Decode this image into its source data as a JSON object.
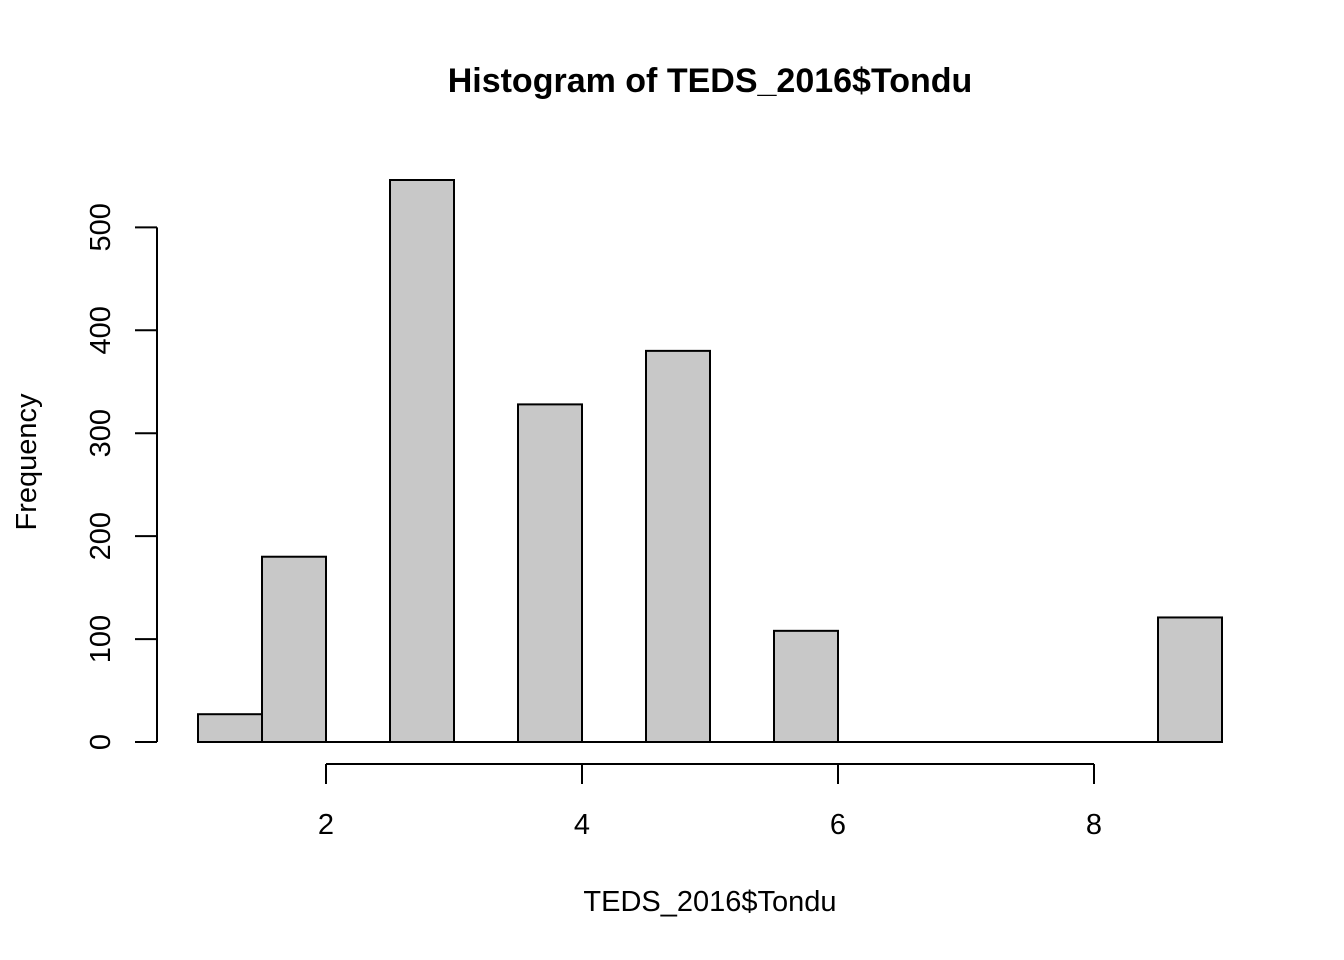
{
  "chart_data": {
    "type": "bar",
    "title": "Histogram of TEDS_2016$Tondu",
    "xlabel": "TEDS_2016$Tondu",
    "ylabel": "Frequency",
    "bins": [
      {
        "start": 1.0,
        "end": 1.5,
        "count": 27
      },
      {
        "start": 1.5,
        "end": 2.0,
        "count": 180
      },
      {
        "start": 2.0,
        "end": 2.5,
        "count": 0
      },
      {
        "start": 2.5,
        "end": 3.0,
        "count": 546
      },
      {
        "start": 3.0,
        "end": 3.5,
        "count": 0
      },
      {
        "start": 3.5,
        "end": 4.0,
        "count": 328
      },
      {
        "start": 4.0,
        "end": 4.5,
        "count": 0
      },
      {
        "start": 4.5,
        "end": 5.0,
        "count": 380
      },
      {
        "start": 5.0,
        "end": 5.5,
        "count": 0
      },
      {
        "start": 5.5,
        "end": 6.0,
        "count": 108
      },
      {
        "start": 6.0,
        "end": 6.5,
        "count": 0
      },
      {
        "start": 6.5,
        "end": 7.0,
        "count": 0
      },
      {
        "start": 7.0,
        "end": 7.5,
        "count": 0
      },
      {
        "start": 7.5,
        "end": 8.0,
        "count": 0
      },
      {
        "start": 8.0,
        "end": 8.5,
        "count": 0
      },
      {
        "start": 8.5,
        "end": 9.0,
        "count": 121
      }
    ],
    "xlim": [
      1,
      9
    ],
    "ylim": [
      0,
      546
    ],
    "x_ticks": [
      2,
      4,
      6,
      8
    ],
    "y_ticks": [
      0,
      100,
      200,
      300,
      400,
      500
    ],
    "grid": false,
    "colors": {
      "bar_fill": "#c8c8c8",
      "bar_stroke": "#000000"
    }
  }
}
